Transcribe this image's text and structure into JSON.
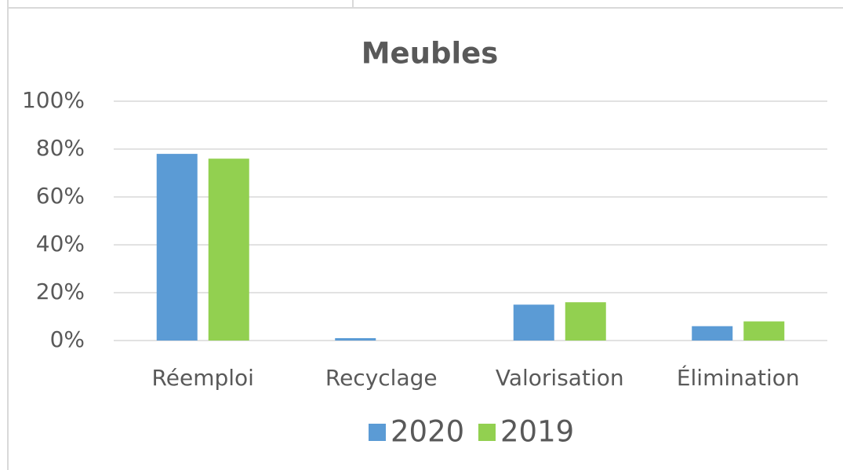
{
  "chart_data": {
    "type": "bar",
    "title": "Meubles",
    "categories": [
      "Réemploi",
      "Recyclage",
      "Valorisation",
      "Élimination"
    ],
    "series": [
      {
        "name": "2020",
        "color": "#5b9bd5",
        "values": [
          78,
          1,
          15,
          6
        ]
      },
      {
        "name": "2019",
        "color": "#92d050",
        "values": [
          76,
          0,
          16,
          8
        ]
      }
    ],
    "ylim": [
      0,
      100
    ],
    "yticks": [
      {
        "value": 0,
        "label": "0%"
      },
      {
        "value": 20,
        "label": "20%"
      },
      {
        "value": 40,
        "label": "40%"
      },
      {
        "value": 60,
        "label": "60%"
      },
      {
        "value": 80,
        "label": "80%"
      },
      {
        "value": 100,
        "label": "100%"
      }
    ],
    "grid": true,
    "legend": "bottom"
  }
}
